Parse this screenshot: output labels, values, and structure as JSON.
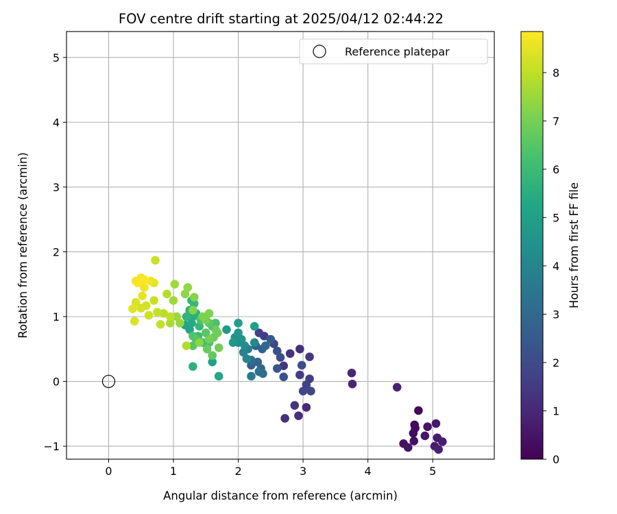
{
  "chart_data": {
    "type": "scatter",
    "title": "FOV centre drift starting at 2025/04/12 02:44:22",
    "xlabel": "Angular distance from reference (arcmin)",
    "ylabel": "Rotation from reference (arcmin)",
    "xlim": [
      -0.65,
      5.95
    ],
    "ylim": [
      -1.2,
      5.4
    ],
    "xticks": [
      0,
      1,
      2,
      3,
      4,
      5
    ],
    "yticks": [
      -1,
      0,
      1,
      2,
      3,
      4,
      5
    ],
    "grid": true,
    "legend": {
      "placement": "upper-right",
      "entries": [
        "Reference platepar"
      ]
    },
    "reference_point": {
      "x": 0,
      "y": 0,
      "label": "Reference platepar"
    },
    "colorbar": {
      "label": "Hours from first FF file",
      "min": 0,
      "max": 8.85,
      "ticks": [
        0,
        1,
        2,
        3,
        4,
        5,
        6,
        7,
        8
      ],
      "colormap": "viridis"
    },
    "columns": [
      "x",
      "y",
      "hours"
    ],
    "points": [
      [
        4.78,
        -0.45,
        0.15
      ],
      [
        4.72,
        -0.67,
        0.2
      ],
      [
        4.73,
        -0.72,
        0.25
      ],
      [
        4.7,
        -0.8,
        0.3
      ],
      [
        4.71,
        -0.92,
        0.35
      ],
      [
        4.55,
        -0.96,
        0.4
      ],
      [
        4.62,
        -1.02,
        0.45
      ],
      [
        4.92,
        -0.7,
        0.5
      ],
      [
        4.88,
        -0.84,
        0.55
      ],
      [
        5.05,
        -0.65,
        0.6
      ],
      [
        5.07,
        -0.87,
        0.65
      ],
      [
        5.15,
        -0.93,
        0.7
      ],
      [
        5.03,
        -1.0,
        0.75
      ],
      [
        5.09,
        -1.05,
        0.8
      ],
      [
        4.45,
        -0.09,
        0.85
      ],
      [
        3.75,
        0.13,
        0.9
      ],
      [
        3.76,
        -0.04,
        0.95
      ],
      [
        3.05,
        -0.4,
        1.05
      ],
      [
        2.93,
        -0.53,
        1.15
      ],
      [
        2.72,
        -0.57,
        1.25
      ],
      [
        2.87,
        -0.37,
        1.35
      ],
      [
        2.95,
        0.5,
        1.2
      ],
      [
        2.8,
        0.43,
        1.3
      ],
      [
        2.7,
        0.24,
        1.4
      ],
      [
        3.1,
        0.38,
        1.45
      ],
      [
        2.95,
        0.1,
        1.55
      ],
      [
        3.1,
        0.04,
        1.65
      ],
      [
        3.05,
        -0.05,
        1.75
      ],
      [
        3.0,
        -0.15,
        1.85
      ],
      [
        3.12,
        -0.15,
        1.95
      ],
      [
        2.98,
        0.25,
        2.05
      ],
      [
        2.65,
        0.37,
        2.1
      ],
      [
        2.6,
        0.47,
        2.2
      ],
      [
        2.7,
        0.07,
        2.3
      ],
      [
        2.6,
        0.2,
        2.4
      ],
      [
        2.55,
        0.58,
        1.85
      ],
      [
        2.4,
        0.7,
        1.6
      ],
      [
        2.32,
        0.75,
        1.7
      ],
      [
        2.27,
        0.55,
        2.6
      ],
      [
        2.37,
        0.5,
        2.7
      ],
      [
        2.2,
        0.25,
        2.8
      ],
      [
        2.3,
        0.3,
        2.9
      ],
      [
        2.35,
        0.2,
        3.0
      ],
      [
        2.38,
        0.12,
        3.1
      ],
      [
        2.32,
        0.15,
        3.2
      ],
      [
        2.2,
        0.33,
        3.3
      ],
      [
        2.5,
        0.65,
        2.5
      ],
      [
        2.42,
        0.55,
        2.95
      ],
      [
        2.2,
        0.08,
        3.6
      ],
      [
        2.15,
        0.5,
        3.8
      ],
      [
        2.08,
        0.45,
        3.9
      ],
      [
        2.13,
        0.35,
        4.0
      ],
      [
        2.25,
        0.6,
        4.1
      ],
      [
        2.1,
        0.55,
        4.2
      ],
      [
        2.0,
        0.6,
        4.3
      ],
      [
        1.95,
        0.68,
        4.4
      ],
      [
        2.05,
        0.65,
        4.5
      ],
      [
        2.0,
        0.75,
        4.6
      ],
      [
        1.92,
        0.6,
        4.7
      ],
      [
        1.82,
        0.8,
        4.8
      ],
      [
        2.0,
        0.9,
        4.9
      ],
      [
        2.25,
        0.85,
        5.0
      ],
      [
        1.6,
        0.3,
        5.0
      ],
      [
        1.7,
        0.08,
        5.3
      ],
      [
        1.3,
        0.23,
        5.6
      ],
      [
        1.18,
        0.87,
        5.1
      ],
      [
        1.25,
        0.8,
        5.2
      ],
      [
        1.28,
        0.9,
        5.4
      ],
      [
        1.3,
        1.0,
        5.5
      ],
      [
        1.35,
        1.05,
        5.65
      ],
      [
        1.25,
        1.1,
        5.7
      ],
      [
        1.2,
        1.0,
        5.75
      ],
      [
        1.28,
        1.25,
        5.8
      ],
      [
        1.32,
        1.2,
        5.85
      ],
      [
        1.4,
        0.85,
        5.9
      ],
      [
        1.38,
        0.7,
        6.0
      ],
      [
        1.45,
        0.6,
        6.1
      ],
      [
        1.5,
        0.75,
        6.15
      ],
      [
        1.55,
        0.6,
        6.2
      ],
      [
        1.6,
        0.85,
        6.25
      ],
      [
        1.65,
        0.9,
        6.3
      ],
      [
        1.42,
        0.95,
        6.35
      ],
      [
        1.35,
        0.65,
        6.4
      ],
      [
        1.3,
        0.7,
        6.45
      ],
      [
        1.3,
        0.55,
        6.5
      ],
      [
        1.5,
        0.75,
        6.55
      ],
      [
        1.55,
        0.9,
        6.6
      ],
      [
        1.6,
        0.4,
        6.7
      ],
      [
        1.52,
        0.5,
        6.75
      ],
      [
        1.62,
        0.68,
        6.8
      ],
      [
        1.65,
        0.8,
        6.85
      ],
      [
        1.68,
        0.75,
        6.9
      ],
      [
        1.7,
        0.52,
        6.95
      ],
      [
        1.55,
        0.65,
        7.0
      ],
      [
        1.5,
        0.95,
        7.05
      ],
      [
        1.45,
        1.0,
        7.1
      ],
      [
        1.55,
        1.05,
        7.15
      ],
      [
        1.3,
        1.1,
        7.2
      ],
      [
        1.32,
        1.3,
        7.25
      ],
      [
        1.4,
        0.6,
        7.3
      ],
      [
        1.18,
        1.35,
        7.35
      ],
      [
        1.22,
        1.45,
        7.4
      ],
      [
        1.1,
        0.9,
        7.45
      ],
      [
        1.05,
        1.0,
        7.5
      ],
      [
        1.0,
        1.25,
        7.55
      ],
      [
        1.02,
        1.5,
        7.6
      ],
      [
        0.95,
        0.9,
        7.7
      ],
      [
        1.2,
        0.55,
        7.8
      ],
      [
        0.9,
        1.35,
        7.85
      ],
      [
        0.85,
        1.05,
        7.9
      ],
      [
        0.95,
        1.0,
        8.0
      ],
      [
        0.8,
        0.88,
        8.05
      ],
      [
        0.75,
        1.07,
        8.1
      ],
      [
        0.7,
        1.25,
        8.1
      ],
      [
        0.72,
        1.87,
        8.15
      ],
      [
        0.62,
        1.02,
        8.2
      ],
      [
        0.58,
        1.17,
        8.25
      ],
      [
        0.5,
        1.13,
        8.3
      ],
      [
        0.42,
        1.22,
        8.35
      ],
      [
        0.4,
        0.93,
        8.4
      ],
      [
        0.37,
        1.12,
        8.45
      ],
      [
        0.52,
        1.32,
        8.5
      ],
      [
        0.7,
        1.52,
        8.5
      ],
      [
        0.65,
        1.55,
        8.6
      ],
      [
        0.55,
        1.45,
        8.65
      ],
      [
        0.42,
        1.55,
        8.7
      ],
      [
        0.5,
        1.6,
        8.75
      ],
      [
        0.45,
        1.52,
        8.8
      ],
      [
        0.55,
        1.57,
        8.85
      ]
    ]
  }
}
